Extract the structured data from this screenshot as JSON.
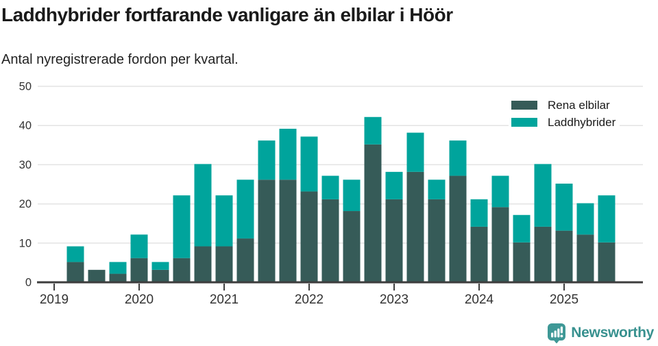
{
  "header": {
    "title": "Laddhybrider fortfarande vanligare än elbilar i Höör",
    "subtitle": "Antal nyregistrerade fordon per kvartal."
  },
  "chart_data": {
    "type": "bar",
    "stacked": true,
    "title": "Laddhybrider fortfarande vanligare än elbilar i Höör",
    "subtitle": "Antal nyregistrerade fordon per kvartal.",
    "x": [
      "2019-Q2",
      "2019-Q3",
      "2019-Q4",
      "2020-Q1",
      "2020-Q2",
      "2020-Q3",
      "2020-Q4",
      "2021-Q1",
      "2021-Q2",
      "2021-Q3",
      "2021-Q4",
      "2022-Q1",
      "2022-Q2",
      "2022-Q3",
      "2022-Q4",
      "2023-Q1",
      "2023-Q2",
      "2023-Q3",
      "2023-Q4",
      "2024-Q1",
      "2024-Q2",
      "2024-Q3",
      "2024-Q4",
      "2025-Q1",
      "2025-Q2",
      "2025-Q3"
    ],
    "series": [
      {
        "name": "Rena elbilar",
        "color": "#365B58",
        "values": [
          5,
          3,
          2,
          6,
          3,
          6,
          9,
          9,
          11,
          26,
          26,
          23,
          21,
          18,
          35,
          21,
          28,
          21,
          27,
          14,
          19,
          10,
          14,
          13,
          12,
          10
        ]
      },
      {
        "name": "Laddhybrider",
        "color": "#00A49C",
        "values": [
          4,
          0,
          3,
          6,
          2,
          16,
          21,
          13,
          15,
          10,
          13,
          14,
          6,
          8,
          7,
          7,
          10,
          5,
          9,
          7,
          8,
          7,
          16,
          12,
          8,
          12
        ]
      }
    ],
    "totals": [
      9,
      3,
      5,
      12,
      5,
      22,
      30,
      22,
      26,
      36,
      39,
      37,
      27,
      26,
      42,
      28,
      38,
      26,
      36,
      21,
      27,
      17,
      30,
      25,
      20,
      22
    ],
    "ylim": [
      0,
      50
    ],
    "yticks": [
      0,
      10,
      20,
      30,
      40,
      50
    ],
    "xticks_years": [
      "2019",
      "2020",
      "2021",
      "2022",
      "2023",
      "2024",
      "2025"
    ],
    "grid": true,
    "legend_position": "top-right"
  },
  "colors": {
    "grid": "#e3e3e3",
    "axis": "#3d3d3d",
    "tick_text": "#333333"
  },
  "footer": {
    "brand": "Newsworthy",
    "brand_color": "#38918F",
    "logo_color": "#3E9896"
  }
}
